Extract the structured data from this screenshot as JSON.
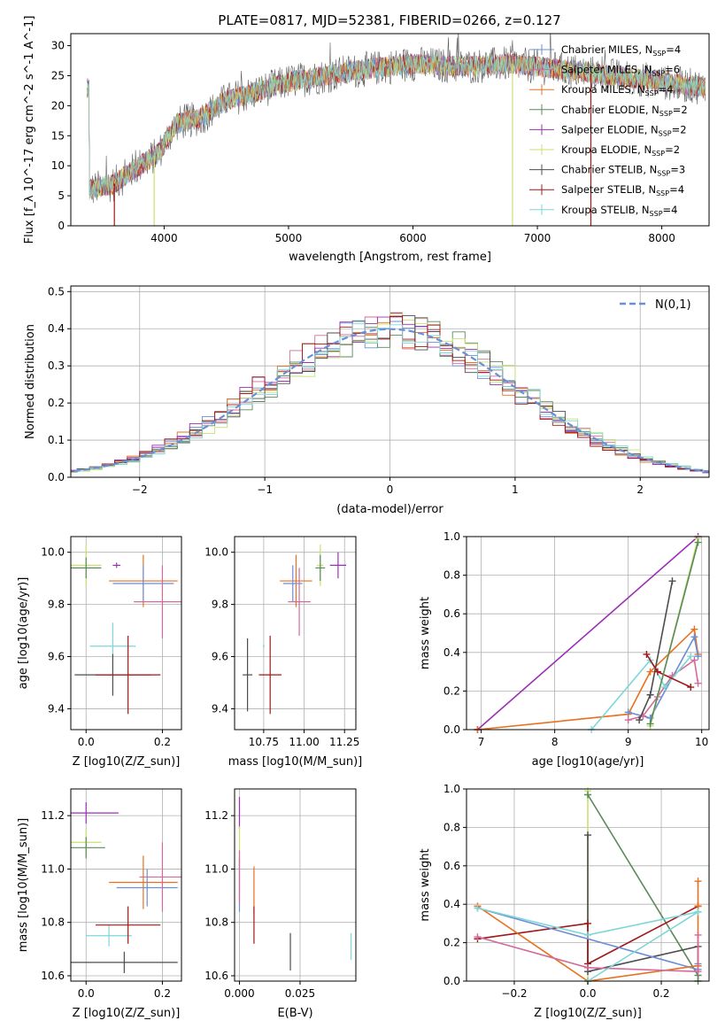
{
  "figure": {
    "title": "PLATE=0817, MJD=52381, FIBERID=0266, z=0.127"
  },
  "series_colors": [
    "#6b8fd6",
    "#e8701e",
    "#d46a9b",
    "#5a8a5a",
    "#9b30b4",
    "#c8e070",
    "#4d4d4d",
    "#a01818",
    "#7ed6d8"
  ],
  "legend_entries": [
    {
      "text": "Chabrier MILES, N",
      "sub": "SSP",
      "val": "=4",
      "color": "#6b8fd6"
    },
    {
      "text": "Salpeter MILES, N",
      "sub": "SSP",
      "val": "=6",
      "color": "#d46a9b"
    },
    {
      "text": "Kroupa MILES, N",
      "sub": "SSP",
      "val": "=4",
      "color": "#e8701e"
    },
    {
      "text": "Chabrier ELODIE, N",
      "sub": "SSP",
      "val": "=2",
      "color": "#5a8a5a"
    },
    {
      "text": "Salpeter ELODIE, N",
      "sub": "SSP",
      "val": "=2",
      "color": "#9b30b4"
    },
    {
      "text": "Kroupa ELODIE, N",
      "sub": "SSP",
      "val": "=2",
      "color": "#c8e070"
    },
    {
      "text": "Chabrier STELIB, N",
      "sub": "SSP",
      "val": "=3",
      "color": "#4d4d4d"
    },
    {
      "text": "Salpeter STELIB, N",
      "sub": "SSP",
      "val": "=4",
      "color": "#a01818"
    },
    {
      "text": "Kroupa STELIB, N",
      "sub": "SSP",
      "val": "=4",
      "color": "#7ed6d8"
    }
  ],
  "chart_data": [
    {
      "id": "spectrum",
      "type": "line",
      "xlabel": "wavelength [Angstrom, rest frame]",
      "ylabel": "Flux [f_λ 10^-17 erg cm^-2 s^-1 A^-1]",
      "xlim": [
        3250,
        8380
      ],
      "ylim": [
        0,
        32
      ],
      "xticks": [
        4000,
        5000,
        6000,
        7000,
        8000
      ],
      "yticks": [
        0,
        5,
        10,
        15,
        20,
        25,
        30
      ],
      "continuum": {
        "x": [
          3400,
          3600,
          3800,
          3950,
          4100,
          4300,
          4500,
          4700,
          5000,
          5300,
          5600,
          6000,
          6400,
          6800,
          7200,
          7600,
          8000,
          8350
        ],
        "y": [
          6,
          7,
          10,
          12,
          17,
          18,
          21,
          22,
          24,
          25,
          26,
          27,
          26.5,
          27,
          26,
          25,
          24,
          23
        ]
      },
      "grid": false
    },
    {
      "id": "residuals",
      "type": "line",
      "xlabel": "(data-model)/error",
      "ylabel": "Normed distribution",
      "xlim": [
        -2.55,
        2.55
      ],
      "ylim": [
        0,
        0.515
      ],
      "xticks": [
        -2,
        -1,
        0,
        1,
        2
      ],
      "yticks": [
        0.0,
        0.1,
        0.2,
        0.3,
        0.4,
        0.5
      ],
      "legend": "N(0,1)",
      "grid": true
    },
    {
      "id": "age_vs_Z",
      "type": "scatter",
      "xlabel": "Z [log10(Z/Z_sun)]",
      "ylabel": "age [log10(age/yr)]",
      "xlim": [
        -0.04,
        0.25
      ],
      "ylim": [
        9.32,
        10.06
      ],
      "xticks": [
        0.0,
        0.2
      ],
      "yticks": [
        9.4,
        9.6,
        9.8,
        10.0
      ],
      "points": [
        {
          "x": 0.0,
          "y": 9.95,
          "xerr": 0.04,
          "yerr": 0.08,
          "color": "#c8e070"
        },
        {
          "x": 0.0,
          "y": 9.94,
          "xerr": 0.04,
          "yerr": 0.04,
          "color": "#5a8a5a"
        },
        {
          "x": 0.08,
          "y": 9.95,
          "xerr": 0.01,
          "yerr": 0.01,
          "color": "#9b30b4"
        },
        {
          "x": 0.15,
          "y": 9.89,
          "xerr": 0.09,
          "yerr": 0.1,
          "color": "#e8701e"
        },
        {
          "x": 0.15,
          "y": 9.88,
          "xerr": 0.08,
          "yerr": 0.07,
          "color": "#6b8fd6"
        },
        {
          "x": 0.2,
          "y": 9.81,
          "xerr": 0.075,
          "yerr": 0.14,
          "color": "#d46a9b"
        },
        {
          "x": 0.07,
          "y": 9.64,
          "xerr": 0.06,
          "yerr": 0.09,
          "color": "#7ed6d8"
        },
        {
          "x": 0.07,
          "y": 9.53,
          "xerr": 0.1,
          "yerr": 0.08,
          "color": "#4d4d4d"
        },
        {
          "x": 0.11,
          "y": 9.53,
          "xerr": 0.085,
          "yerr": 0.15,
          "color": "#a01818"
        }
      ],
      "grid": true
    },
    {
      "id": "age_vs_mass",
      "type": "scatter",
      "xlabel": "mass [log10(M/M_sun)]",
      "ylabel": "",
      "xlim": [
        10.57,
        11.32
      ],
      "ylim": [
        9.32,
        10.06
      ],
      "xticks": [
        10.75,
        11.0,
        11.25
      ],
      "yticks": [
        9.4,
        9.6,
        9.8,
        10.0
      ],
      "points": [
        {
          "x": 11.1,
          "y": 9.95,
          "xerr": 0.02,
          "yerr": 0.08,
          "color": "#c8e070"
        },
        {
          "x": 11.1,
          "y": 9.94,
          "xerr": 0.03,
          "yerr": 0.05,
          "color": "#5a8a5a"
        },
        {
          "x": 11.21,
          "y": 9.95,
          "xerr": 0.05,
          "yerr": 0.05,
          "color": "#9b30b4"
        },
        {
          "x": 10.95,
          "y": 9.89,
          "xerr": 0.1,
          "yerr": 0.1,
          "color": "#e8701e"
        },
        {
          "x": 10.93,
          "y": 9.88,
          "xerr": 0.06,
          "yerr": 0.07,
          "color": "#6b8fd6"
        },
        {
          "x": 10.97,
          "y": 9.81,
          "xerr": 0.07,
          "yerr": 0.13,
          "color": "#d46a9b"
        },
        {
          "x": 10.75,
          "y": 9.64,
          "xerr": 0.005,
          "yerr": 0.005,
          "color": "#7ed6d8"
        },
        {
          "x": 10.65,
          "y": 9.53,
          "xerr": 0.03,
          "yerr": 0.14,
          "color": "#4d4d4d"
        },
        {
          "x": 10.79,
          "y": 9.53,
          "xerr": 0.07,
          "yerr": 0.15,
          "color": "#a01818"
        }
      ],
      "grid": true
    },
    {
      "id": "massweight_vs_age",
      "type": "line",
      "xlabel": "age  [log10(age/yr)]",
      "ylabel": "mass weight",
      "xlim": [
        6.8,
        10.1
      ],
      "ylim": [
        0,
        1.0
      ],
      "xticks": [
        7,
        8,
        9,
        10
      ],
      "yticks": [
        0.0,
        0.2,
        0.4,
        0.6,
        0.8,
        1.0
      ],
      "series": [
        {
          "color": "#9b30b4",
          "x": [
            6.95,
            9.95
          ],
          "y": [
            0.0,
            1.0
          ]
        },
        {
          "color": "#e8701e",
          "x": [
            6.95,
            9.0,
            9.3,
            9.9,
            9.95
          ],
          "y": [
            0.0,
            0.08,
            0.3,
            0.52,
            0.39
          ]
        },
        {
          "color": "#6b8fd6",
          "x": [
            9.0,
            9.3,
            9.9,
            9.95
          ],
          "y": [
            0.09,
            0.06,
            0.48,
            0.38
          ]
        },
        {
          "color": "#d46a9b",
          "x": [
            9.0,
            9.2,
            9.4,
            9.6,
            9.9,
            9.95
          ],
          "y": [
            0.05,
            0.07,
            0.17,
            0.28,
            0.36,
            0.24
          ]
        },
        {
          "color": "#7ed6d8",
          "x": [
            8.5,
            9.3,
            9.5,
            9.85
          ],
          "y": [
            0.0,
            0.36,
            0.22,
            0.38
          ]
        },
        {
          "color": "#4d4d4d",
          "x": [
            9.15,
            9.3,
            9.6
          ],
          "y": [
            0.05,
            0.18,
            0.77
          ]
        },
        {
          "color": "#a01818",
          "x": [
            9.25,
            9.4,
            9.85
          ],
          "y": [
            0.39,
            0.3,
            0.22
          ]
        },
        {
          "color": "#c8e070",
          "x": [
            9.3,
            9.95
          ],
          "y": [
            0.02,
            0.99
          ]
        },
        {
          "color": "#5a8a5a",
          "x": [
            9.3,
            9.95
          ],
          "y": [
            0.03,
            0.97
          ]
        }
      ],
      "grid": true
    },
    {
      "id": "mass_vs_Z",
      "type": "scatter",
      "xlabel": "Z [log10(Z/Z_sun)]",
      "ylabel": "mass [log10(M/M_sun)]",
      "xlim": [
        -0.04,
        0.25
      ],
      "ylim": [
        10.58,
        11.3
      ],
      "xticks": [
        0.0,
        0.2
      ],
      "yticks": [
        10.6,
        10.8,
        11.0,
        11.2
      ],
      "points": [
        {
          "x": 0.0,
          "y": 11.21,
          "xerr": 0.085,
          "yerr": 0.04,
          "color": "#9b30b4"
        },
        {
          "x": 0.0,
          "y": 11.1,
          "xerr": 0.04,
          "yerr": 0.05,
          "color": "#c8e070"
        },
        {
          "x": 0.0,
          "y": 11.08,
          "xerr": 0.05,
          "yerr": 0.04,
          "color": "#5a8a5a"
        },
        {
          "x": 0.15,
          "y": 10.95,
          "xerr": 0.09,
          "yerr": 0.1,
          "color": "#e8701e"
        },
        {
          "x": 0.16,
          "y": 10.93,
          "xerr": 0.08,
          "yerr": 0.07,
          "color": "#6b8fd6"
        },
        {
          "x": 0.2,
          "y": 10.97,
          "xerr": 0.06,
          "yerr": 0.13,
          "color": "#d46a9b"
        },
        {
          "x": 0.06,
          "y": 10.75,
          "xerr": 0.06,
          "yerr": 0.04,
          "color": "#7ed6d8"
        },
        {
          "x": 0.11,
          "y": 10.79,
          "xerr": 0.085,
          "yerr": 0.07,
          "color": "#a01818"
        },
        {
          "x": 0.1,
          "y": 10.65,
          "xerr": 0.14,
          "yerr": 0.04,
          "color": "#4d4d4d"
        }
      ],
      "grid": true
    },
    {
      "id": "mass_vs_ebv",
      "type": "scatter",
      "xlabel": "E(B-V)",
      "ylabel": "",
      "xlim": [
        -0.002,
        0.048
      ],
      "ylim": [
        10.58,
        11.3
      ],
      "xticks": [
        0.0,
        0.025
      ],
      "yticks": [
        10.6,
        10.8,
        11.0,
        11.2
      ],
      "points": [
        {
          "x": 0.0,
          "y": 11.21,
          "yerr": 0.06,
          "color": "#9b30b4"
        },
        {
          "x": 0.0,
          "y": 11.08,
          "yerr": 0.08,
          "color": "#c8e070"
        },
        {
          "x": 0.0,
          "y": 10.94,
          "yerr": 0.1,
          "color": "#6b8fd6"
        },
        {
          "x": 0.0,
          "y": 10.97,
          "yerr": 0.1,
          "color": "#d46a9b"
        },
        {
          "x": 0.006,
          "y": 10.92,
          "yerr": 0.09,
          "color": "#e8701e"
        },
        {
          "x": 0.006,
          "y": 10.79,
          "yerr": 0.07,
          "color": "#a01818"
        },
        {
          "x": 0.021,
          "y": 10.69,
          "yerr": 0.07,
          "color": "#4d4d4d"
        },
        {
          "x": 0.046,
          "y": 10.71,
          "yerr": 0.05,
          "color": "#7ed6d8"
        }
      ],
      "grid": true
    },
    {
      "id": "massweight_vs_Z",
      "type": "line",
      "xlabel": "Z [log10(Z/Z_sun)]",
      "ylabel": "mass weight",
      "xlim": [
        -0.33,
        0.33
      ],
      "ylim": [
        0,
        1.0
      ],
      "xticks": [
        -0.2,
        0.0,
        0.2
      ],
      "yticks": [
        0.0,
        0.2,
        0.4,
        0.6,
        0.8,
        1.0
      ],
      "series": [
        {
          "color": "#c8e070",
          "x": [
            0.0,
            0.0
          ],
          "y": [
            0.0,
            0.99
          ]
        },
        {
          "color": "#5a8a5a",
          "x": [
            0.0,
            0.3,
            0.3
          ],
          "y": [
            0.97,
            0.03,
            0.0
          ]
        },
        {
          "color": "#4d4d4d",
          "x": [
            0.0,
            0.0,
            0.3,
            0.3
          ],
          "y": [
            0.76,
            0.05,
            0.18,
            0.08
          ]
        },
        {
          "color": "#a01818",
          "x": [
            -0.3,
            0.0,
            0.0,
            0.3
          ],
          "y": [
            0.22,
            0.3,
            0.09,
            0.39
          ]
        },
        {
          "color": "#6b8fd6",
          "x": [
            -0.3,
            0.3,
            0.3
          ],
          "y": [
            0.38,
            0.06,
            0.09
          ]
        },
        {
          "color": "#e8701e",
          "x": [
            -0.3,
            0.0,
            0.3,
            0.3,
            0.3
          ],
          "y": [
            0.39,
            0.0,
            0.08,
            0.52,
            0.39
          ]
        },
        {
          "color": "#d46a9b",
          "x": [
            -0.3,
            0.0,
            0.3,
            0.3
          ],
          "y": [
            0.23,
            0.07,
            0.05,
            0.24
          ]
        },
        {
          "color": "#7ed6d8",
          "x": [
            -0.3,
            0.0,
            0.3
          ],
          "y": [
            0.38,
            0.24,
            0.36
          ]
        },
        {
          "color": "#7ed6d8",
          "x": [
            0.0,
            0.3
          ],
          "y": [
            0.0,
            0.36
          ]
        }
      ],
      "grid": true
    }
  ]
}
